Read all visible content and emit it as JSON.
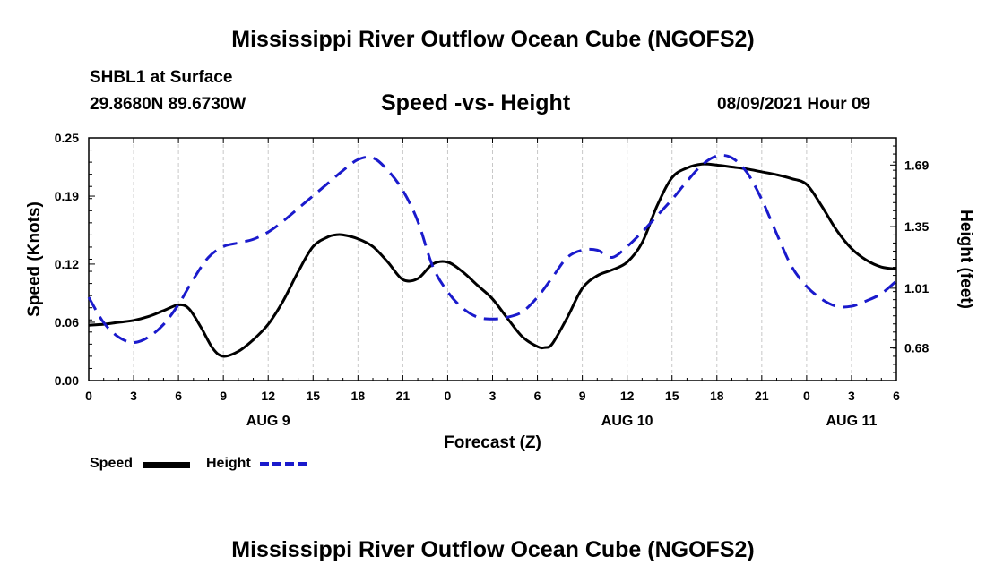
{
  "header": {
    "title": "Mississippi River Outflow Ocean Cube (NGOFS2)",
    "station": "SHBL1 at Surface",
    "coords": "29.8680N  89.6730W",
    "subtitle": "Speed -vs- Height",
    "datetime": "08/09/2021 Hour 09"
  },
  "footer": {
    "title": "Mississippi River Outflow Ocean Cube (NGOFS2)"
  },
  "legend": {
    "speed_label": "Speed",
    "height_label": "Height"
  },
  "colors": {
    "speed": "#000000",
    "height": "#1a1acc",
    "grid": "#c8c8c8"
  },
  "chart_data": {
    "type": "line",
    "title": "Speed -vs- Height",
    "xlabel": "Forecast (Z)",
    "ylabel_left": "Speed (Knots)",
    "ylabel_right": "Height (feet)",
    "x_range_hours": [
      0,
      54
    ],
    "x_ticks": [
      0,
      3,
      6,
      9,
      12,
      15,
      18,
      21,
      24,
      27,
      30,
      33,
      36,
      39,
      42,
      45,
      48,
      51,
      54
    ],
    "x_tick_labels": [
      "0",
      "3",
      "6",
      "9",
      "12",
      "15",
      "18",
      "21",
      "0",
      "3",
      "6",
      "9",
      "12",
      "15",
      "18",
      "21",
      "0",
      "3",
      "6"
    ],
    "date_labels": [
      {
        "hour": 12,
        "text": "AUG 9"
      },
      {
        "hour": 36,
        "text": "AUG 10"
      },
      {
        "hour": 51,
        "text": "AUG 11"
      }
    ],
    "y_left_range": [
      0,
      0.25
    ],
    "y_left_ticks": [
      0.0,
      0.06,
      0.12,
      0.19,
      0.25
    ],
    "y_left_tick_labels": [
      "0.00",
      "0.06",
      "0.12",
      "0.19",
      "0.25"
    ],
    "y_right_range": [
      0.5,
      1.84
    ],
    "y_right_ticks": [
      0.68,
      1.01,
      1.35,
      1.69
    ],
    "y_right_tick_labels": [
      "0.68",
      "1.01",
      "1.35",
      "1.69"
    ],
    "grid_x": true,
    "series": [
      {
        "name": "Speed",
        "axis": "left",
        "style": "solid",
        "x": [
          0,
          1,
          2,
          3,
          4,
          5,
          6,
          6.7,
          7.5,
          8.3,
          9,
          10,
          11,
          12,
          13,
          14,
          15,
          16,
          16.5,
          17,
          18,
          19,
          20,
          21,
          22,
          23,
          24,
          25,
          26,
          27,
          28,
          29,
          30,
          30.5,
          31,
          32,
          33,
          34,
          35,
          36,
          37,
          38,
          39,
          40,
          41,
          42,
          43,
          44,
          45,
          46,
          47,
          48,
          49,
          50,
          51,
          52,
          53,
          54
        ],
        "values": [
          0.057,
          0.058,
          0.06,
          0.062,
          0.066,
          0.072,
          0.078,
          0.074,
          0.055,
          0.033,
          0.025,
          0.03,
          0.042,
          0.058,
          0.082,
          0.112,
          0.138,
          0.148,
          0.15,
          0.15,
          0.146,
          0.138,
          0.122,
          0.104,
          0.105,
          0.12,
          0.122,
          0.112,
          0.098,
          0.084,
          0.064,
          0.045,
          0.035,
          0.034,
          0.038,
          0.065,
          0.095,
          0.108,
          0.114,
          0.122,
          0.142,
          0.18,
          0.209,
          0.219,
          0.223,
          0.222,
          0.22,
          0.218,
          0.215,
          0.212,
          0.208,
          0.202,
          0.18,
          0.155,
          0.136,
          0.124,
          0.117,
          0.115
        ]
      },
      {
        "name": "Height",
        "axis": "right",
        "style": "dashed",
        "x": [
          0,
          1,
          2,
          3,
          4,
          5,
          6,
          7,
          8,
          9,
          10,
          11,
          12,
          13,
          14,
          15,
          16,
          17,
          18,
          19,
          20,
          21,
          22,
          23,
          24,
          25,
          26,
          27,
          28,
          29,
          30,
          31,
          32,
          33,
          34,
          35,
          36,
          37,
          38,
          39,
          40,
          41,
          42,
          43,
          44,
          45,
          46,
          47,
          48,
          49,
          50,
          51,
          52,
          53,
          54
        ],
        "values": [
          0.96,
          0.82,
          0.74,
          0.71,
          0.74,
          0.81,
          0.92,
          1.06,
          1.18,
          1.24,
          1.26,
          1.28,
          1.32,
          1.38,
          1.45,
          1.52,
          1.59,
          1.66,
          1.72,
          1.73,
          1.66,
          1.55,
          1.38,
          1.13,
          0.99,
          0.9,
          0.85,
          0.84,
          0.85,
          0.88,
          0.96,
          1.07,
          1.18,
          1.22,
          1.22,
          1.18,
          1.24,
          1.32,
          1.41,
          1.5,
          1.6,
          1.69,
          1.74,
          1.73,
          1.65,
          1.5,
          1.31,
          1.13,
          1.02,
          0.95,
          0.91,
          0.91,
          0.94,
          0.98,
          1.05
        ]
      }
    ]
  }
}
